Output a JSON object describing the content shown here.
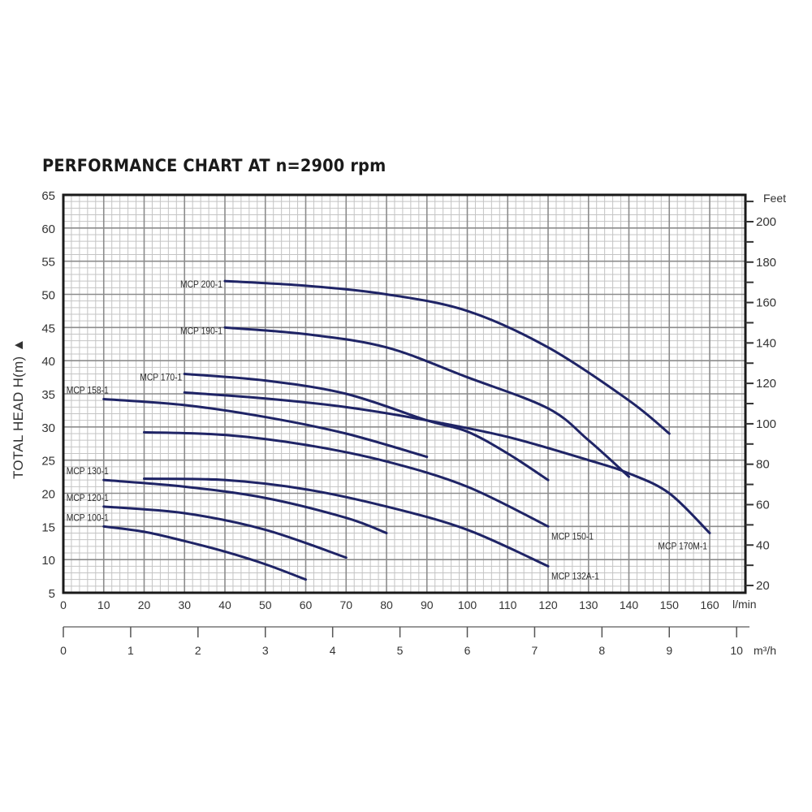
{
  "title": "PERFORMANCE CHART AT n=2900 rpm",
  "chart_data": {
    "type": "line",
    "title": "PERFORMANCE CHART AT n=2900 rpm",
    "xlabel": "l/min",
    "xlabel_secondary": "m³/h",
    "ylabel": "TOTAL HEAD H(m) ▲",
    "ylabel_right": "Feet",
    "xlim": [
      0,
      168
    ],
    "ylim": [
      5,
      65
    ],
    "x_ticks": [
      0,
      10,
      20,
      30,
      40,
      50,
      60,
      70,
      80,
      90,
      100,
      110,
      120,
      130,
      140,
      150,
      160
    ],
    "y_ticks": [
      5,
      10,
      15,
      20,
      25,
      30,
      35,
      40,
      45,
      50,
      55,
      60,
      65
    ],
    "secondary_x_ticks": [
      0,
      1,
      2,
      3,
      4,
      5,
      6,
      7,
      8,
      9,
      10
    ],
    "right_y_ticks": [
      20,
      40,
      60,
      80,
      100,
      120,
      140,
      160,
      180,
      200
    ],
    "grid": true,
    "grid_minor": true,
    "legend_position": "inline labels",
    "series": [
      {
        "name": "MCP 200-1",
        "x": [
          40,
          60,
          80,
          100,
          120,
          140,
          150
        ],
        "y": [
          52,
          51.3,
          50,
          47.5,
          42,
          34,
          29
        ]
      },
      {
        "name": "MCP 190-1",
        "x": [
          40,
          60,
          80,
          100,
          120,
          130,
          140
        ],
        "y": [
          45,
          44,
          42,
          37.5,
          32.8,
          28,
          22.5
        ]
      },
      {
        "name": "MCP 170-1",
        "x": [
          30,
          50,
          70,
          90,
          100,
          110,
          120
        ],
        "y": [
          38,
          37,
          35,
          31,
          29.3,
          26,
          22
        ]
      },
      {
        "name": "MCP 170M-1",
        "x": [
          30,
          50,
          70,
          90,
          110,
          130,
          140,
          150,
          160
        ],
        "y": [
          35.2,
          34.3,
          33,
          31,
          28.5,
          25,
          23,
          20,
          14
        ]
      },
      {
        "name": "MCP 158-1",
        "x": [
          10,
          30,
          50,
          70,
          90
        ],
        "y": [
          34.2,
          33.3,
          31.5,
          29,
          25.5
        ]
      },
      {
        "name": "MCP 150-1",
        "x": [
          20,
          40,
          60,
          80,
          100,
          120
        ],
        "y": [
          29.2,
          28.8,
          27.3,
          24.8,
          21,
          15
        ]
      },
      {
        "name": "MCP 130-1",
        "x": [
          10,
          30,
          50,
          70,
          80
        ],
        "y": [
          22,
          21,
          19.3,
          16.3,
          14
        ]
      },
      {
        "name": "MCP 132A-1",
        "x": [
          20,
          40,
          60,
          80,
          100,
          120
        ],
        "y": [
          22.2,
          22,
          20.6,
          18,
          14.5,
          9
        ]
      },
      {
        "name": "MCP 120-1",
        "x": [
          10,
          30,
          50,
          70
        ],
        "y": [
          18,
          17,
          14.5,
          10.3
        ]
      },
      {
        "name": "MCP 100-1",
        "x": [
          10,
          20,
          30,
          40,
          50,
          60
        ],
        "y": [
          15,
          14.2,
          12.8,
          11.2,
          9.3,
          7
        ]
      }
    ],
    "labels": [
      {
        "series": "MCP 200-1",
        "text": "MCP 200-1",
        "anchor": "start-left"
      },
      {
        "series": "MCP 190-1",
        "text": "MCP 190-1",
        "anchor": "start-left"
      },
      {
        "series": "MCP 170-1",
        "text": "MCP 170-1",
        "anchor": "start-left"
      },
      {
        "series": "MCP 158-1",
        "text": "MCP 158-1",
        "anchor": "start-above"
      },
      {
        "series": "MCP 130-1",
        "text": "MCP 130-1",
        "anchor": "start-above"
      },
      {
        "series": "MCP 120-1",
        "text": "MCP 120-1",
        "anchor": "start-above"
      },
      {
        "series": "MCP 100-1",
        "text": "MCP 100-1",
        "anchor": "start-above"
      },
      {
        "series": "MCP 150-1",
        "text": "MCP 150-1",
        "anchor": "end-below"
      },
      {
        "series": "MCP 132A-1",
        "text": "MCP 132A-1",
        "anchor": "end-below"
      },
      {
        "series": "MCP 170M-1",
        "text": "MCP 170M-1",
        "anchor": "end-left-below"
      }
    ]
  },
  "colors": {
    "curve": "#1f2466",
    "grid_major": "#8c8c8c",
    "grid_minor": "#c4c4c4",
    "frame": "#1a1a1a",
    "text": "#333333"
  },
  "axis_units": {
    "x_primary": "l/min",
    "x_secondary": "m³/h",
    "y_right": "Feet"
  }
}
